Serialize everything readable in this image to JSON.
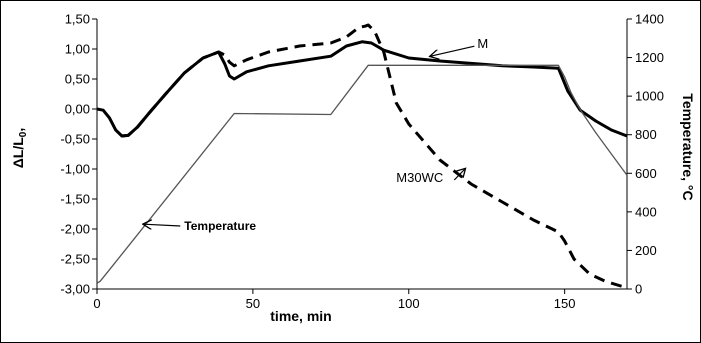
{
  "chart_data": {
    "type": "line",
    "xlabel": "time,  min",
    "ylabel_left": "ΔL/L",
    "ylabel_left_sub": "0",
    "ylabel_left_suffix": ",",
    "ylabel_right": "Temperature, °C",
    "xlim": [
      0,
      170
    ],
    "ylim_left": [
      -3,
      1.5
    ],
    "ylim_right": [
      0,
      1400
    ],
    "x_ticks": [
      0,
      50,
      100,
      150
    ],
    "x_tick_labels": [
      "0",
      "50",
      "100",
      "150"
    ],
    "y_left_ticks": [
      1.5,
      1.0,
      0.5,
      0.0,
      -0.5,
      -1.0,
      -1.5,
      -2.0,
      -2.5,
      -3.0
    ],
    "y_left_tick_labels": [
      "1,50",
      "1,00",
      "0,50",
      "0,00",
      "-0,50",
      "-1,00",
      "-1,50",
      "-2,00",
      "-2,50",
      "-3,00"
    ],
    "y_right_ticks": [
      1400,
      1200,
      1000,
      800,
      600,
      400,
      200,
      0
    ],
    "y_right_tick_labels": [
      "1400",
      "1200",
      "1000",
      "800",
      "600",
      "400",
      "200",
      "0"
    ],
    "grid": false,
    "series": [
      {
        "name": "M",
        "axis": "left",
        "style": "solid-thick",
        "color": "#000000",
        "x": [
          0,
          2,
          4,
          6,
          8,
          10,
          13,
          17,
          22,
          28,
          34,
          39,
          41,
          42.5,
          44,
          48,
          55,
          65,
          75,
          80,
          85,
          88,
          92,
          100,
          110,
          120,
          130,
          140,
          148,
          151,
          155,
          160,
          165,
          170
        ],
        "y": [
          0,
          -0.02,
          -0.15,
          -0.35,
          -0.45,
          -0.44,
          -0.3,
          -0.05,
          0.25,
          0.6,
          0.85,
          0.95,
          0.75,
          0.55,
          0.5,
          0.62,
          0.72,
          0.8,
          0.88,
          1.05,
          1.12,
          1.1,
          0.98,
          0.85,
          0.8,
          0.76,
          0.72,
          0.7,
          0.68,
          0.3,
          -0.02,
          -0.2,
          -0.35,
          -0.45
        ]
      },
      {
        "name": "M30WC",
        "axis": "left",
        "style": "dashed",
        "color": "#000000",
        "x": [
          8,
          10,
          13,
          17,
          22,
          28,
          34,
          39,
          41,
          42.5,
          44,
          48,
          55,
          65,
          75,
          80,
          84,
          86,
          87,
          89,
          92,
          96,
          100,
          110,
          120,
          130,
          140,
          148,
          150,
          153,
          158,
          163,
          168,
          170
        ],
        "y": [
          -0.45,
          -0.44,
          -0.3,
          -0.05,
          0.25,
          0.6,
          0.85,
          0.95,
          0.9,
          0.78,
          0.72,
          0.82,
          0.95,
          1.05,
          1.1,
          1.2,
          1.36,
          1.38,
          1.4,
          1.3,
          0.95,
          0.1,
          -0.25,
          -0.85,
          -1.25,
          -1.55,
          -1.85,
          -2.05,
          -2.2,
          -2.5,
          -2.75,
          -2.87,
          -2.95,
          -2.98
        ]
      },
      {
        "name": "Temperature",
        "axis": "right",
        "style": "solid-thin",
        "color": "#555555",
        "x": [
          0,
          1,
          4,
          44,
          75,
          87,
          148,
          150,
          152,
          155,
          160,
          165,
          170
        ],
        "y": [
          30,
          40,
          100,
          910,
          905,
          1160,
          1160,
          1100,
          1020,
          930,
          810,
          700,
          590
        ]
      }
    ],
    "annotations": [
      {
        "text": "M",
        "x": 122,
        "y": 1.08,
        "arrow_to": [
          107,
          0.88
        ]
      },
      {
        "text": "M30WC",
        "x": 96,
        "y": -1.15,
        "arrow_to": [
          118,
          -1.0
        ]
      },
      {
        "text": "Temperature",
        "x": 28,
        "y": -1.95,
        "arrow_to": [
          15,
          -1.92
        ]
      }
    ]
  }
}
